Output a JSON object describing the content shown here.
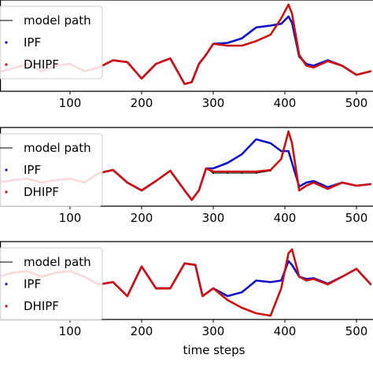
{
  "figure": {
    "xlabel": "time steps"
  },
  "colors": {
    "model_path": "#000000",
    "ipf": "#1010c8",
    "dhipf": "#d01010"
  },
  "chart_data": [
    {
      "type": "line",
      "panel": 1,
      "xlabel": "",
      "xlim": [
        0,
        520
      ],
      "ylim": [
        0,
        1
      ],
      "xticks": [
        "100",
        "200",
        "300",
        "400",
        "500"
      ],
      "legend": {
        "placement": "top-left",
        "entries": [
          "model path",
          "IPF",
          "DHIPF"
        ]
      },
      "series": [
        {
          "name": "model path",
          "x": [
            0,
            20,
            40,
            60,
            80,
            100,
            120,
            140,
            160,
            180,
            200,
            220,
            240,
            260,
            270,
            280,
            290,
            300,
            320,
            340,
            360,
            380,
            395,
            405,
            410,
            420,
            430,
            440,
            460,
            480,
            500,
            520
          ],
          "y": [
            0.21,
            0.25,
            0.3,
            0.22,
            0.28,
            0.3,
            0.22,
            0.26,
            0.34,
            0.32,
            0.14,
            0.3,
            0.36,
            0.08,
            0.1,
            0.3,
            0.4,
            0.52,
            0.5,
            0.5,
            0.55,
            0.62,
            0.8,
            0.95,
            0.85,
            0.4,
            0.28,
            0.26,
            0.33,
            0.28,
            0.18,
            0.22
          ]
        },
        {
          "name": "IPF",
          "x": [
            0,
            20,
            40,
            60,
            80,
            100,
            120,
            140,
            160,
            180,
            200,
            220,
            240,
            260,
            270,
            280,
            290,
            300,
            320,
            340,
            360,
            380,
            395,
            405,
            410,
            420,
            430,
            440,
            460,
            480,
            500,
            520
          ],
          "y": [
            0.21,
            0.25,
            0.3,
            0.22,
            0.28,
            0.3,
            0.22,
            0.26,
            0.34,
            0.32,
            0.14,
            0.3,
            0.36,
            0.08,
            0.1,
            0.3,
            0.4,
            0.52,
            0.53,
            0.58,
            0.7,
            0.72,
            0.74,
            0.82,
            0.75,
            0.38,
            0.3,
            0.28,
            0.34,
            0.28,
            0.18,
            0.22
          ]
        },
        {
          "name": "DHIPF",
          "x": [
            0,
            20,
            40,
            60,
            80,
            100,
            120,
            140,
            160,
            180,
            200,
            220,
            240,
            260,
            270,
            280,
            290,
            300,
            320,
            340,
            360,
            380,
            395,
            405,
            410,
            420,
            430,
            440,
            460,
            480,
            500,
            520
          ],
          "y": [
            0.21,
            0.25,
            0.3,
            0.22,
            0.28,
            0.3,
            0.22,
            0.26,
            0.34,
            0.32,
            0.14,
            0.3,
            0.36,
            0.08,
            0.1,
            0.3,
            0.4,
            0.52,
            0.5,
            0.5,
            0.55,
            0.62,
            0.8,
            0.95,
            0.85,
            0.4,
            0.28,
            0.26,
            0.33,
            0.28,
            0.18,
            0.22
          ]
        }
      ]
    },
    {
      "type": "line",
      "panel": 2,
      "xlabel": "",
      "xlim": [
        0,
        520
      ],
      "ylim": [
        0,
        1
      ],
      "xticks": [
        "100",
        "200",
        "300",
        "400",
        "500"
      ],
      "legend": {
        "placement": "top-left",
        "entries": [
          "model path",
          "IPF",
          "DHIPF"
        ]
      },
      "series": [
        {
          "name": "model path",
          "x": [
            0,
            20,
            40,
            60,
            80,
            100,
            120,
            140,
            160,
            180,
            200,
            220,
            240,
            260,
            270,
            280,
            290,
            300,
            320,
            340,
            360,
            380,
            395,
            405,
            410,
            420,
            430,
            440,
            460,
            480,
            500,
            520
          ],
          "y": [
            0.3,
            0.33,
            0.35,
            0.3,
            0.33,
            0.35,
            0.3,
            0.42,
            0.46,
            0.3,
            0.2,
            0.32,
            0.45,
            0.2,
            0.08,
            0.2,
            0.48,
            0.42,
            0.42,
            0.42,
            0.42,
            0.45,
            0.6,
            0.95,
            0.8,
            0.2,
            0.26,
            0.3,
            0.22,
            0.3,
            0.26,
            0.28
          ]
        },
        {
          "name": "IPF",
          "x": [
            0,
            20,
            40,
            60,
            80,
            100,
            120,
            140,
            160,
            180,
            200,
            220,
            240,
            260,
            270,
            280,
            290,
            300,
            320,
            340,
            360,
            380,
            395,
            405,
            410,
            420,
            430,
            440,
            460,
            480,
            500,
            520
          ],
          "y": [
            0.3,
            0.33,
            0.35,
            0.3,
            0.33,
            0.35,
            0.3,
            0.42,
            0.46,
            0.3,
            0.2,
            0.32,
            0.45,
            0.2,
            0.08,
            0.2,
            0.48,
            0.48,
            0.55,
            0.66,
            0.85,
            0.8,
            0.7,
            0.7,
            0.55,
            0.25,
            0.3,
            0.32,
            0.24,
            0.3,
            0.26,
            0.28
          ]
        },
        {
          "name": "DHIPF",
          "x": [
            0,
            20,
            40,
            60,
            80,
            100,
            120,
            140,
            160,
            180,
            200,
            220,
            240,
            260,
            270,
            280,
            290,
            300,
            320,
            340,
            360,
            380,
            395,
            405,
            410,
            420,
            430,
            440,
            460,
            480,
            500,
            520
          ],
          "y": [
            0.3,
            0.33,
            0.35,
            0.3,
            0.33,
            0.35,
            0.3,
            0.42,
            0.46,
            0.3,
            0.2,
            0.32,
            0.45,
            0.2,
            0.08,
            0.2,
            0.48,
            0.44,
            0.44,
            0.44,
            0.44,
            0.46,
            0.6,
            0.95,
            0.8,
            0.2,
            0.26,
            0.3,
            0.22,
            0.3,
            0.26,
            0.28
          ]
        }
      ]
    },
    {
      "type": "line",
      "panel": 3,
      "xlabel": "time steps",
      "xlim": [
        0,
        520
      ],
      "ylim": [
        0,
        1
      ],
      "xticks": [
        "100",
        "200",
        "300",
        "400",
        "500"
      ],
      "legend": {
        "placement": "top-left",
        "entries": [
          "model path",
          "IPF",
          "DHIPF"
        ]
      },
      "series": [
        {
          "name": "model path",
          "x": [
            0,
            20,
            40,
            60,
            80,
            100,
            120,
            140,
            160,
            180,
            200,
            220,
            240,
            260,
            275,
            285,
            300,
            320,
            340,
            360,
            380,
            395,
            405,
            410,
            420,
            430,
            440,
            460,
            480,
            500,
            520
          ],
          "y": [
            0.55,
            0.6,
            0.62,
            0.55,
            0.6,
            0.62,
            0.55,
            0.45,
            0.48,
            0.3,
            0.68,
            0.4,
            0.4,
            0.72,
            0.7,
            0.3,
            0.4,
            0.25,
            0.15,
            0.08,
            0.05,
            0.4,
            0.85,
            0.9,
            0.55,
            0.5,
            0.52,
            0.45,
            0.55,
            0.65,
            0.45
          ]
        },
        {
          "name": "IPF",
          "x": [
            0,
            20,
            40,
            60,
            80,
            100,
            120,
            140,
            160,
            180,
            200,
            220,
            240,
            260,
            275,
            285,
            300,
            320,
            340,
            360,
            380,
            395,
            405,
            410,
            420,
            430,
            440,
            460,
            480,
            500,
            520
          ],
          "y": [
            0.55,
            0.6,
            0.62,
            0.55,
            0.6,
            0.62,
            0.55,
            0.45,
            0.48,
            0.3,
            0.68,
            0.4,
            0.4,
            0.72,
            0.7,
            0.3,
            0.4,
            0.3,
            0.35,
            0.5,
            0.48,
            0.5,
            0.75,
            0.7,
            0.55,
            0.52,
            0.53,
            0.46,
            0.55,
            0.65,
            0.45
          ]
        },
        {
          "name": "DHIPF",
          "x": [
            0,
            20,
            40,
            60,
            80,
            100,
            120,
            140,
            160,
            180,
            200,
            220,
            240,
            260,
            275,
            285,
            300,
            320,
            340,
            360,
            380,
            395,
            405,
            410,
            420,
            430,
            440,
            460,
            480,
            500,
            520
          ],
          "y": [
            0.55,
            0.6,
            0.62,
            0.55,
            0.6,
            0.62,
            0.55,
            0.45,
            0.48,
            0.3,
            0.68,
            0.4,
            0.4,
            0.72,
            0.7,
            0.3,
            0.4,
            0.25,
            0.15,
            0.08,
            0.05,
            0.4,
            0.85,
            0.9,
            0.55,
            0.5,
            0.52,
            0.45,
            0.55,
            0.65,
            0.45
          ]
        }
      ]
    }
  ]
}
